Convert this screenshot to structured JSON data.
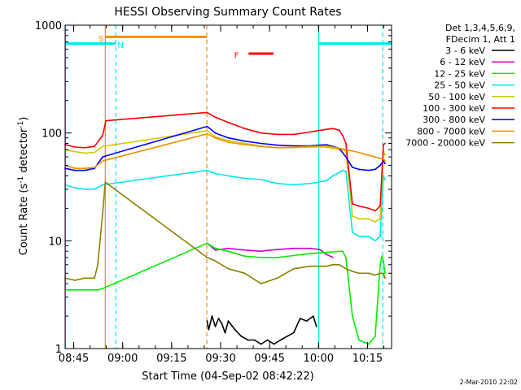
{
  "chart_data": {
    "type": "line",
    "title": "HESSI Observing Summary Count Rates",
    "xlabel": "Start Time (04-Sep-02 08:42:22)",
    "ylabel": "Count Rate (s⁻¹ detector⁻¹)",
    "ylabel_main": "Count Rate (s",
    "ylabel_sup1": "-1",
    "ylabel_mid": " detector",
    "ylabel_sup2": "-1",
    "ylabel_end": ")",
    "x_unit": "minutes since 08:42:22",
    "xlim": [
      0,
      100
    ],
    "ylim": [
      1,
      1000
    ],
    "y_scale": "log",
    "x_ticks": [
      {
        "label": "08:45",
        "value": 2.63
      },
      {
        "label": "09:00",
        "value": 17.63
      },
      {
        "label": "09:15",
        "value": 32.63
      },
      {
        "label": "09:30",
        "value": 47.63
      },
      {
        "label": "09:45",
        "value": 62.63
      },
      {
        "label": "10:00",
        "value": 77.63
      },
      {
        "label": "10:15",
        "value": 92.63
      }
    ],
    "y_ticks": [
      {
        "label": "1",
        "value": 1
      },
      {
        "label": "10",
        "value": 10
      },
      {
        "label": "100",
        "value": 100
      },
      {
        "label": "1000",
        "value": 1000
      }
    ],
    "legend_title_1": "Det 1,3,4,5,6,9,",
    "legend_title_2": "FDecim 1, Att 1",
    "legend_placement": "right",
    "series": [
      {
        "name": "3 - 6 keV",
        "color": "#000000",
        "x": [
          43.5,
          44,
          45,
          46,
          47,
          48,
          49,
          50,
          52,
          54,
          56,
          58,
          60,
          62,
          64,
          66,
          68,
          70,
          72,
          74,
          76,
          77
        ],
        "y": [
          1.8,
          1.5,
          2.0,
          1.6,
          1.9,
          1.7,
          1.4,
          1.8,
          1.5,
          1.3,
          1.2,
          1.2,
          1.1,
          1.2,
          1.1,
          1.2,
          1.3,
          1.4,
          1.9,
          1.8,
          2.0,
          1.6
        ]
      },
      {
        "name": "6 - 12 keV",
        "color": "#cc00cc",
        "x": [
          43.5,
          46,
          50,
          55,
          60,
          65,
          70,
          75,
          78,
          80,
          82
        ],
        "y": [
          9.5,
          8.2,
          8.5,
          8.2,
          8.0,
          8.3,
          8.5,
          8.5,
          8.3,
          7.5,
          7.0
        ]
      },
      {
        "name": "12 - 25 keV",
        "color": "#00ee00",
        "x": [
          0,
          5,
          10,
          11.5,
          43.5,
          46,
          50,
          55,
          60,
          65,
          70,
          75,
          80,
          85,
          86,
          88,
          90,
          93,
          95,
          96.5,
          97,
          97.5,
          98
        ],
        "y": [
          3.5,
          3.5,
          3.5,
          3.6,
          9.5,
          8.5,
          8.0,
          7.2,
          7.0,
          7.0,
          7.3,
          7.6,
          7.8,
          8.0,
          7.0,
          2.0,
          1.2,
          1.1,
          1.3,
          6.0,
          7.2,
          6.5,
          5.0
        ]
      },
      {
        "name": "25 - 50 keV",
        "color": "#00e5ee",
        "x": [
          0,
          3,
          6,
          9,
          11.5,
          43.5,
          46,
          50,
          55,
          60,
          65,
          70,
          75,
          80,
          82,
          84,
          85,
          86,
          88,
          90,
          93,
          95,
          96.5,
          97.5,
          98
        ],
        "y": [
          33,
          31,
          30,
          30,
          33,
          45,
          42,
          40,
          38,
          37,
          34,
          33,
          34,
          36,
          40,
          43,
          45,
          44,
          12,
          11,
          11,
          10,
          11,
          40,
          37
        ]
      },
      {
        "name": "50 - 100 keV",
        "color": "#cccc00",
        "x": [
          0,
          3,
          6,
          9,
          11.5,
          43.5,
          46,
          50,
          55,
          60,
          65,
          70,
          75,
          80,
          82,
          84,
          85,
          86,
          88,
          90,
          93,
          95,
          96.5,
          97.5,
          98
        ],
        "y": [
          70,
          67,
          65,
          66,
          75,
          105,
          92,
          85,
          80,
          76,
          73,
          73,
          74,
          74,
          72,
          70,
          70,
          68,
          17,
          16,
          16,
          15,
          16,
          68,
          62
        ]
      },
      {
        "name": "100 - 300 keV",
        "color": "#ff0000",
        "x": [
          0,
          3,
          6,
          9,
          11.5,
          12.5,
          43.5,
          46,
          50,
          55,
          60,
          65,
          70,
          75,
          80,
          82,
          84,
          85,
          86,
          88,
          90,
          93,
          95,
          96.5,
          97.5,
          98
        ],
        "y": [
          78,
          74,
          73,
          75,
          95,
          130,
          155,
          140,
          125,
          110,
          100,
          97,
          97,
          102,
          108,
          110,
          106,
          95,
          80,
          22,
          21,
          20,
          19,
          21,
          78,
          80
        ]
      },
      {
        "name": "300 - 800 keV",
        "color": "#0000ff",
        "x": [
          0,
          3,
          6,
          9,
          11.5,
          43.5,
          46,
          50,
          55,
          60,
          65,
          70,
          75,
          80,
          82,
          84,
          86,
          88,
          90,
          93,
          95,
          96.5,
          97.5,
          98
        ],
        "y": [
          47,
          45,
          45,
          47,
          60,
          115,
          100,
          90,
          84,
          80,
          77,
          76,
          76,
          78,
          75,
          72,
          60,
          48,
          46,
          45,
          46,
          50,
          55,
          52
        ]
      },
      {
        "name": "800 - 7000 keV",
        "color": "#ee9000",
        "x": [
          0,
          3,
          6,
          9,
          11.5,
          43.5,
          46,
          50,
          55,
          60,
          65,
          70,
          75,
          80,
          82,
          84,
          86,
          88,
          90,
          93,
          95,
          96.5,
          97.5,
          98
        ],
        "y": [
          50,
          47,
          47,
          48,
          55,
          98,
          90,
          82,
          78,
          75,
          73,
          74,
          75,
          76,
          74,
          72,
          70,
          68,
          66,
          62,
          60,
          58,
          58,
          55
        ]
      },
      {
        "name": "7000 - 20000 keV",
        "color": "#8b8000",
        "x": [
          0,
          3,
          6,
          9,
          10,
          11.5,
          12.3,
          43.5,
          46,
          50,
          55,
          60,
          65,
          70,
          75,
          80,
          82,
          84,
          86,
          88,
          90,
          93,
          95,
          96.5,
          97.5,
          98
        ],
        "y": [
          4.5,
          4.3,
          4.5,
          4.5,
          6.0,
          18,
          35,
          7.0,
          6.5,
          5.5,
          5.0,
          4.0,
          4.5,
          5.5,
          5.8,
          5.8,
          6.0,
          6.0,
          5.5,
          5.2,
          5.0,
          5.0,
          4.8,
          5.0,
          5.0,
          4.5
        ]
      }
    ],
    "vertical_markers": [
      {
        "x": 0.1,
        "color": "#00e5ee",
        "dashed": false
      },
      {
        "x": 12.3,
        "color": "#ee9000",
        "dashed": false
      },
      {
        "x": 15.5,
        "color": "#00e5ee",
        "dashed": true
      },
      {
        "x": 43.4,
        "color": "#ee9000",
        "dashed": true
      },
      {
        "x": 77.7,
        "color": "#00e5ee",
        "dashed": false
      },
      {
        "x": 97.3,
        "color": "#00e5ee",
        "dashed": true
      }
    ],
    "annotations": [
      {
        "label": "S",
        "color": "#ee9000",
        "x": 11.0,
        "y": 760
      },
      {
        "label": "N",
        "color": "#00e5ee",
        "x": 17.0,
        "y": 660
      },
      {
        "label": "F",
        "color": "#ff0000",
        "x": 52.5,
        "y": 530
      }
    ],
    "flag_bars": [
      {
        "x0": 0,
        "x1": 15.5,
        "y": 675,
        "color": "#00e5ee"
      },
      {
        "x0": 12.3,
        "x1": 43.4,
        "y": 780,
        "color": "#ee9000"
      },
      {
        "x0": 56.2,
        "x1": 63.8,
        "y": 545,
        "color": "#ff0000"
      },
      {
        "x0": 77.7,
        "x1": 100,
        "y": 675,
        "color": "#00e5ee"
      }
    ],
    "timestamp": "2-Mar-2010 22:02"
  }
}
